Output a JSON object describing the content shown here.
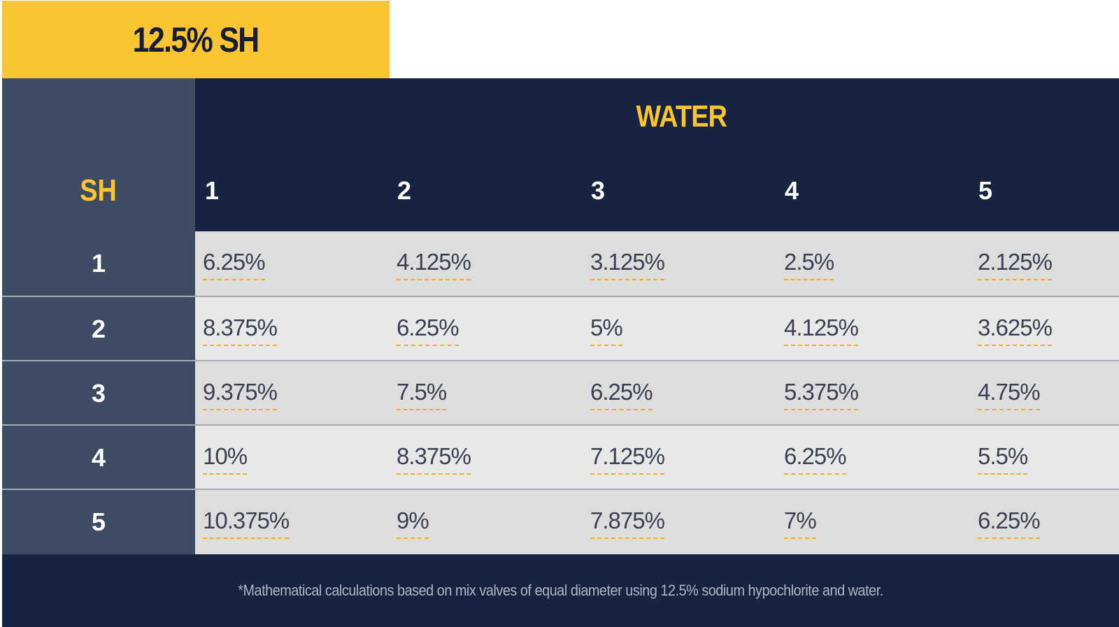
{
  "title": "12.5% SH",
  "table": {
    "row_header_label": "SH",
    "column_group_label": "WATER",
    "columns": [
      "1",
      "2",
      "3",
      "4",
      "5"
    ],
    "rows": [
      {
        "label": "1",
        "cells": [
          "6.25%",
          "4.125%",
          "3.125%",
          "2.5%",
          "2.125%"
        ]
      },
      {
        "label": "2",
        "cells": [
          "8.375%",
          "6.25%",
          "5%",
          "4.125%",
          "3.625%"
        ]
      },
      {
        "label": "3",
        "cells": [
          "9.375%",
          "7.5%",
          "6.25%",
          "5.375%",
          "4.75%"
        ]
      },
      {
        "label": "4",
        "cells": [
          "10%",
          "8.375%",
          "7.125%",
          "6.25%",
          "5.5%"
        ]
      },
      {
        "label": "5",
        "cells": [
          "10.375%",
          "9%",
          "7.875%",
          "7%",
          "6.25%"
        ]
      }
    ]
  },
  "footnote": "*Mathematical calculations based on mix valves of equal diameter using 12.5% sodium hypochlorite and water.",
  "colors": {
    "accent_yellow": "#fbc531",
    "navy": "#162441",
    "slate": "#3d4b63",
    "row_odd": "#dedddd",
    "row_even": "#e8e8e8"
  }
}
